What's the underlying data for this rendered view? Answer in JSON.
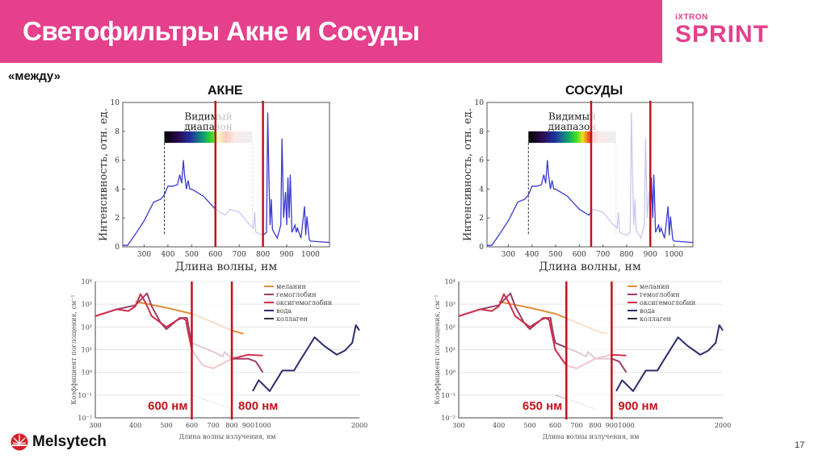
{
  "header": {
    "title": "Светофильтры Акне и Сосуды"
  },
  "brand": {
    "small": "iXTRON",
    "big": "SPRINT",
    "color": "#e4408c"
  },
  "subtitle": "«между»",
  "panels": [
    {
      "title": "АКНЕ",
      "filter_low": 600,
      "filter_high": 800,
      "label_low": "600 нм",
      "label_high": "800 нм"
    },
    {
      "title": "СОСУДЫ",
      "filter_low": 650,
      "filter_high": 900,
      "label_low": "650 нм",
      "label_high": "900 нм"
    }
  ],
  "spectrum_chart": {
    "ylabel": "Интенсивность, отн. ед.",
    "xlabel": "Длина волны, нм",
    "band_label_1": "Видимый",
    "band_label_2": "диапазон",
    "yticks": [
      "0",
      "2",
      "4",
      "6",
      "8",
      "10"
    ],
    "xticks": [
      "300",
      "400",
      "500",
      "600",
      "700",
      "800",
      "900",
      "1000"
    ],
    "line_color": "#3a3ad0"
  },
  "absorption_chart": {
    "ylabel": "Коэффициент поглощения, см⁻¹",
    "xlabel": "Длина волны излучения,   нм",
    "yticks": [
      "10⁻²",
      "10⁻¹",
      "10⁰",
      "10¹",
      "10²",
      "10³",
      "10⁴"
    ],
    "xticks": [
      "300",
      "400",
      "500",
      "600",
      "700",
      "800",
      "900",
      "1000",
      "2000"
    ],
    "legend": [
      {
        "label": "меланин",
        "color": "#e0903a"
      },
      {
        "label": "гемоглобин",
        "color": "#9b3f6a"
      },
      {
        "label": "оксигемоглобин",
        "color": "#d0304a"
      },
      {
        "label": "вода",
        "color": "#2d2d6b"
      },
      {
        "label": "коллаген",
        "color": "#333344"
      }
    ]
  },
  "filter_line_color": "#c0141c",
  "footer": {
    "company": "Melsytech",
    "page": "17"
  }
}
